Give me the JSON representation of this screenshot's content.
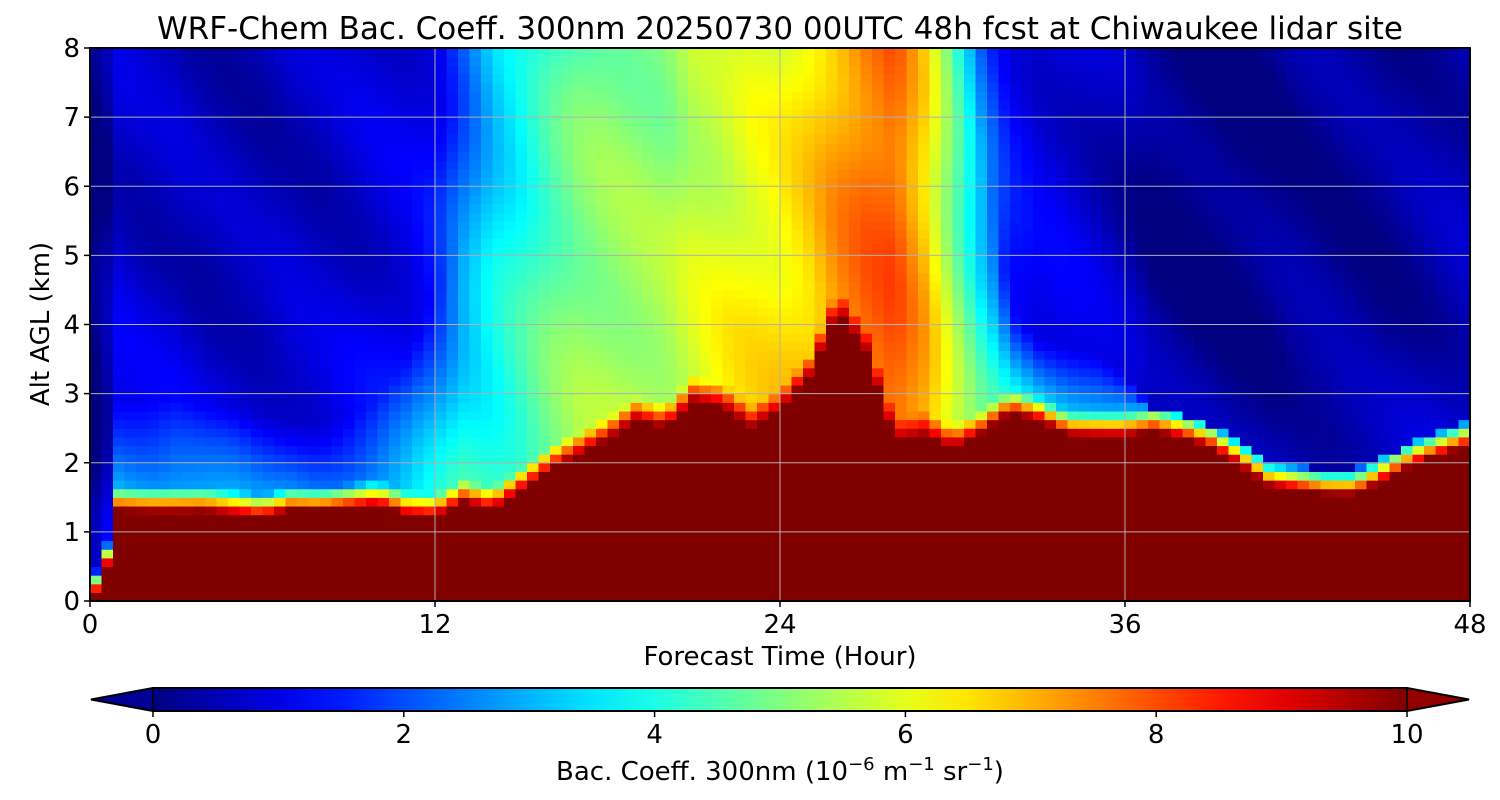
{
  "chart_data": {
    "type": "heatmap",
    "title": "WRF-Chem Bac. Coeff. 300nm  20250730 00UTC 48h fcst at Chiwaukee lidar site",
    "xlabel": "Forecast Time (Hour)",
    "ylabel": "Alt AGL (km)",
    "xlim": [
      0,
      48
    ],
    "ylim": [
      0,
      8
    ],
    "x_ticks": [
      "0",
      "12",
      "24",
      "36",
      "48"
    ],
    "y_ticks": [
      "0",
      "1",
      "2",
      "3",
      "4",
      "5",
      "6",
      "7",
      "8"
    ],
    "grid": true,
    "colormap": "jet",
    "colorbar": {
      "label_main": "Bac. Coeff. 300nm  (10",
      "label_exp1": "−6",
      "label_m": " m",
      "label_exp2": "−1",
      "label_sr": " sr",
      "label_exp3": "−1",
      "label_end": ")",
      "min": 0,
      "max": 10,
      "ticks": [
        "0",
        "2",
        "4",
        "6",
        "8",
        "10"
      ],
      "extend": "both"
    },
    "hours": [
      0,
      0.5,
      1,
      2,
      3,
      4,
      5,
      6,
      7,
      8,
      9,
      10,
      11,
      12,
      13,
      14,
      15,
      16,
      17,
      18,
      19,
      20,
      21,
      22,
      23,
      24,
      25,
      26,
      27,
      28,
      29,
      30,
      31,
      32,
      33,
      34,
      35,
      36,
      37,
      38,
      39,
      40,
      41,
      42,
      43,
      44,
      45,
      46,
      47,
      48
    ],
    "series": [
      {
        "name": "near-surface layer top (km)",
        "values": [
          0,
          0.3,
          1.3,
          1.3,
          1.3,
          1.3,
          1.25,
          1.2,
          1.3,
          1.3,
          1.35,
          1.4,
          1.25,
          1.2,
          1.4,
          1.3,
          1.6,
          1.9,
          2.1,
          2.3,
          2.6,
          2.5,
          2.9,
          2.8,
          2.5,
          2.7,
          3.2,
          4.2,
          3.6,
          2.3,
          2.4,
          2.2,
          2.4,
          2.7,
          2.6,
          2.4,
          2.4,
          2.4,
          2.45,
          2.35,
          2.2,
          1.95,
          1.65,
          1.6,
          1.55,
          1.55,
          1.75,
          1.95,
          2.1,
          2.25
        ]
      },
      {
        "name": "aerosol plume top (km)",
        "values": [
          0,
          2.2,
          3.0,
          2.9,
          2.9,
          2.8,
          2.8,
          2.7,
          2.6,
          2.6,
          2.7,
          2.9,
          3.5,
          4.5,
          5.3,
          5.3,
          5.5,
          6.3,
          7.5,
          8.0,
          8.0,
          8.0,
          8.0,
          8.0,
          8.0,
          8.0,
          8.0,
          8.0,
          8.0,
          8.0,
          8.0,
          8.0,
          7.0,
          4.2,
          3.8,
          3.7,
          3.6,
          3.3,
          2.8,
          2.6,
          2.4,
          2.15,
          2.0,
          1.95,
          1.9,
          1.85,
          1.9,
          2.0,
          2.15,
          2.35
        ]
      },
      {
        "name": "plume core peak (10^-6 m^-1 sr^-1)",
        "values": [
          0.3,
          0.5,
          3.2,
          3.0,
          3.0,
          2.8,
          2.7,
          2.5,
          2.5,
          2.5,
          2.6,
          2.8,
          3.3,
          3.8,
          4.2,
          4.2,
          4.5,
          5.0,
          5.3,
          5.4,
          5.5,
          5.6,
          5.9,
          6.3,
          6.5,
          6.6,
          6.8,
          7.4,
          7.8,
          8.0,
          7.2,
          5.8,
          4.6,
          3.8,
          3.4,
          3.4,
          3.3,
          3.2,
          3.0,
          2.8,
          2.6,
          2.5,
          2.4,
          2.4,
          2.4,
          2.4,
          2.4,
          2.5,
          2.6,
          2.8
        ]
      },
      {
        "name": "upper troposphere background (10^-6 m^-1 sr^-1)",
        "values": [
          0.3,
          0.5,
          1.1,
          1.0,
          1.0,
          0.9,
          0.9,
          0.9,
          1.0,
          1.0,
          1.1,
          1.2,
          1.3,
          1.5,
          2.5,
          3.5,
          4.0,
          4.5,
          4.8,
          5.0,
          5.0,
          5.0,
          5.5,
          5.5,
          5.8,
          6.0,
          6.5,
          7.0,
          7.5,
          7.8,
          6.5,
          4.5,
          2.5,
          1.6,
          1.3,
          1.2,
          1.0,
          0.8,
          0.5,
          0.4,
          0.4,
          0.4,
          0.5,
          0.6,
          0.6,
          0.6,
          0.6,
          0.7,
          0.8,
          0.9
        ]
      }
    ]
  }
}
